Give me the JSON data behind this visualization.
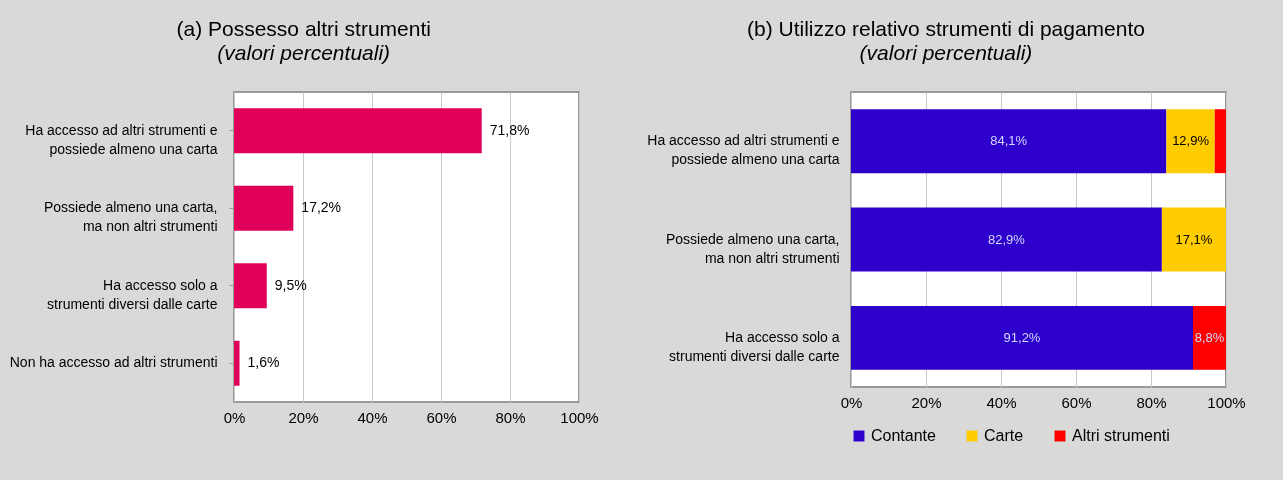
{
  "chart_data": [
    {
      "type": "bar",
      "orientation": "horizontal",
      "title": "(a)  Possesso altri strumenti",
      "subtitle": "(valori percentuali)",
      "categories": [
        "Ha accesso ad altri strumenti e\npossiede almeno una carta",
        "Possiede almeno una carta,\nma non altri strumenti",
        "Ha accesso solo a\nstrumenti diversi dalle carte",
        "Non ha accesso ad altri strumenti"
      ],
      "series": [
        {
          "color": "#e0005a",
          "values": [
            71.8,
            17.2,
            9.5,
            1.6
          ],
          "value_labels": [
            "71,8%",
            "17,2%",
            "9,5%",
            "1,6%"
          ]
        }
      ],
      "xlim": [
        0,
        100
      ],
      "xticks": [
        {
          "value": 0,
          "label": "0%"
        },
        {
          "value": 20,
          "label": "20%"
        },
        {
          "value": 40,
          "label": "40%"
        },
        {
          "value": 60,
          "label": "60%"
        },
        {
          "value": 80,
          "label": "80%"
        },
        {
          "value": 100,
          "label": "100%"
        }
      ],
      "grid": "x"
    },
    {
      "type": "bar",
      "orientation": "horizontal",
      "stacked": true,
      "title": "(b)  Utilizzo relativo strumenti di pagamento",
      "subtitle": "(valori percentuali)",
      "categories": [
        "Ha accesso ad altri strumenti e\npossiede almeno una carta",
        "Possiede almeno una carta,\nma non altri strumenti",
        "Ha accesso solo a\nstrumenti diversi dalle carte"
      ],
      "series": [
        {
          "name": "Contante",
          "color": "#2e00cc",
          "values": [
            84.1,
            82.9,
            91.2
          ],
          "value_labels": [
            "84,1%",
            "82,9%",
            "91,2%"
          ]
        },
        {
          "name": "Carte",
          "color": "#ffcc00",
          "values": [
            12.9,
            17.1,
            null
          ],
          "value_labels": [
            "12,9%",
            "17,1%",
            null
          ]
        },
        {
          "name": "Altri strumenti",
          "color": "#ff0000",
          "values": [
            3.0,
            null,
            8.8
          ],
          "value_labels": [
            null,
            null,
            "8,8%"
          ]
        }
      ],
      "xlim": [
        0,
        100
      ],
      "xticks": [
        {
          "value": 0,
          "label": "0%"
        },
        {
          "value": 20,
          "label": "20%"
        },
        {
          "value": 40,
          "label": "40%"
        },
        {
          "value": 60,
          "label": "60%"
        },
        {
          "value": 80,
          "label": "80%"
        },
        {
          "value": 100,
          "label": "100%"
        }
      ],
      "grid": "x",
      "legend": "bottom"
    }
  ]
}
